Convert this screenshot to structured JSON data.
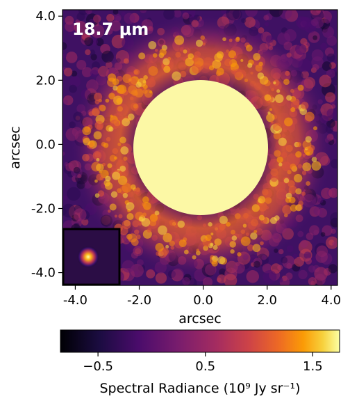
{
  "panel": {
    "wavelength_label": "18.7 μm"
  },
  "axes": {
    "xlabel": "arcsec",
    "ylabel": "arcsec",
    "xlim": [
      -4.4,
      4.2
    ],
    "ylim": [
      -4.4,
      4.2
    ],
    "x_ticks": [
      -4.0,
      -2.0,
      0.0,
      2.0,
      4.0
    ],
    "y_ticks": [
      -4.0,
      -2.0,
      0.0,
      2.0,
      4.0
    ],
    "x_tick_labels": [
      "-4.0",
      "-2.0",
      "0.0",
      "2.0",
      "4.0"
    ],
    "y_tick_labels": [
      "-4.0",
      "-2.0",
      "0.0",
      "2.0",
      "4.0"
    ]
  },
  "image": {
    "colormap": "inferno",
    "ring_center_arcsec": [
      0.0,
      -0.1
    ],
    "ring_radius_arcsec": 3.3,
    "occulted_disk_center_arcsec": [
      -0.2,
      -0.1
    ],
    "occulted_disk_radius_arcsec": 2.1,
    "inset": "point-source PSF"
  },
  "colorbar": {
    "label": "Spectral Radiance (10⁹ Jy sr⁻¹)",
    "range": [
      -0.85,
      1.75
    ],
    "ticks": [
      -0.5,
      0.5,
      1.5
    ],
    "tick_labels": [
      "−0.5",
      "0.5",
      "1.5"
    ],
    "colors": [
      "#000004",
      "#320a5e",
      "#781c6d",
      "#bc3754",
      "#ed6925",
      "#fbb61a",
      "#fcffa4"
    ]
  }
}
